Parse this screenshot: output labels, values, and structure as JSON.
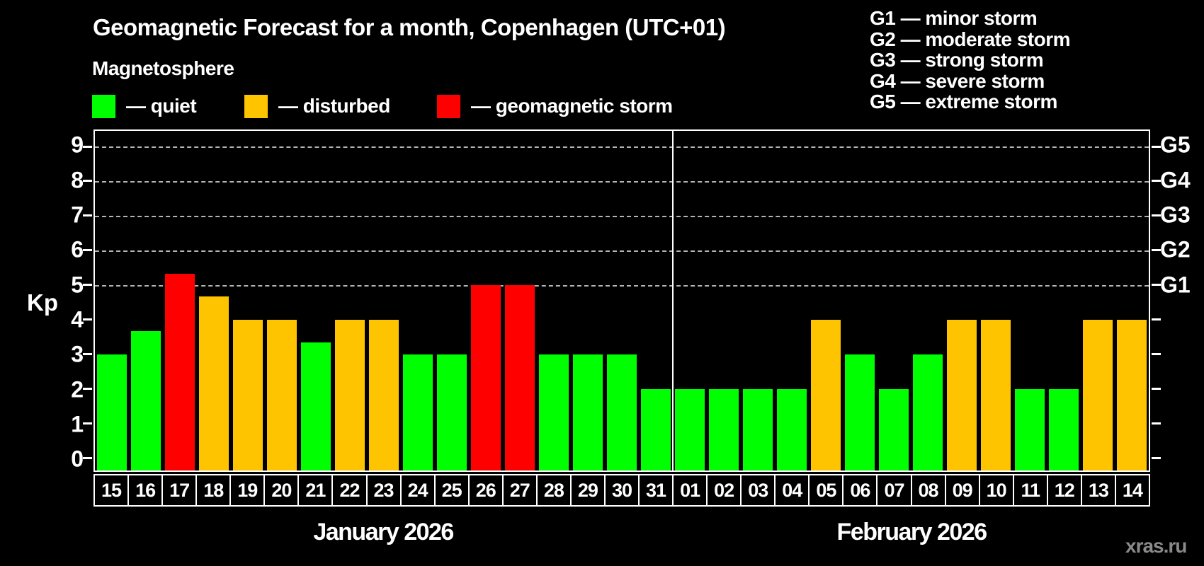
{
  "title": "Geomagnetic Forecast for a month, Copenhagen (UTC+01)",
  "subtitle": "Magnetosphere",
  "watermark": "xras.ru",
  "legend": [
    {
      "status": "quiet",
      "label": "— quiet",
      "color": "#00ff00"
    },
    {
      "status": "disturbed",
      "label": "— disturbed",
      "color": "#ffc400"
    },
    {
      "status": "storm",
      "label": "— geomagnetic storm",
      "color": "#ff0000"
    }
  ],
  "g_scale_legend": [
    "G1 — minor storm",
    "G2 — moderate storm",
    "G3 — strong storm",
    "G4 — severe storm",
    "G5 — extreme storm"
  ],
  "chart_data": {
    "type": "bar",
    "title": "Geomagnetic Forecast for a month, Copenhagen (UTC+01)",
    "ylabel": "Kp",
    "xlabel": "",
    "ylim": [
      0,
      9
    ],
    "yticks": [
      0,
      1,
      2,
      3,
      4,
      5,
      6,
      7,
      8,
      9
    ],
    "gridlines_at": [
      5,
      6,
      7,
      8,
      9
    ],
    "grid": "horizontal dashed lines at Kp 5 through 9 only",
    "legend_position": "top-left",
    "right_axis": [
      {
        "kp": 5,
        "label": "G1"
      },
      {
        "kp": 6,
        "label": "G2"
      },
      {
        "kp": 7,
        "label": "G3"
      },
      {
        "kp": 8,
        "label": "G4"
      },
      {
        "kp": 9,
        "label": "G5"
      }
    ],
    "months": [
      {
        "label": "January 2026",
        "days": 17
      },
      {
        "label": "February 2026",
        "days": 14
      }
    ],
    "categories": [
      "15",
      "16",
      "17",
      "18",
      "19",
      "20",
      "21",
      "22",
      "23",
      "24",
      "25",
      "26",
      "27",
      "28",
      "29",
      "30",
      "31",
      "01",
      "02",
      "03",
      "04",
      "05",
      "06",
      "07",
      "08",
      "09",
      "10",
      "11",
      "12",
      "13",
      "14"
    ],
    "values": [
      3.0,
      3.67,
      5.33,
      4.67,
      4.0,
      4.0,
      3.33,
      4.0,
      4.0,
      3.0,
      3.0,
      5.0,
      5.0,
      3.0,
      3.0,
      3.0,
      2.0,
      2.0,
      2.0,
      2.0,
      2.0,
      4.0,
      3.0,
      2.0,
      3.0,
      4.0,
      4.0,
      2.0,
      2.0,
      4.0,
      4.0
    ],
    "statuses": [
      "quiet",
      "quiet",
      "storm",
      "disturbed",
      "disturbed",
      "disturbed",
      "quiet",
      "disturbed",
      "disturbed",
      "quiet",
      "quiet",
      "storm",
      "storm",
      "quiet",
      "quiet",
      "quiet",
      "quiet",
      "quiet",
      "quiet",
      "quiet",
      "quiet",
      "disturbed",
      "quiet",
      "quiet",
      "quiet",
      "disturbed",
      "disturbed",
      "quiet",
      "quiet",
      "disturbed",
      "disturbed"
    ],
    "colors": {
      "quiet": "#00ff00",
      "disturbed": "#ffc400",
      "storm": "#ff0000"
    }
  }
}
